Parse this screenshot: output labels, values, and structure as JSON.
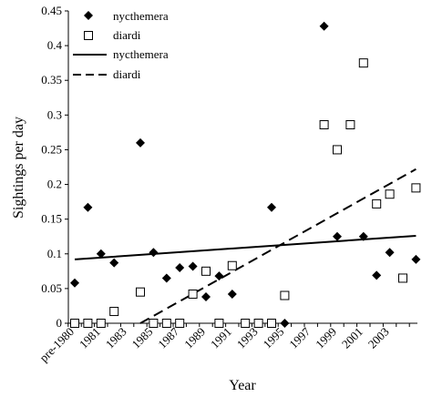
{
  "chart_data": {
    "type": "scatter",
    "xlabel": "Year",
    "ylabel": "Sightings per day",
    "ylim": [
      0,
      0.45
    ],
    "y_ticks": [
      "0",
      "0.05",
      "0.1",
      "0.15",
      "0.2",
      "0.25",
      "0.3",
      "0.35",
      "0.4",
      "0.45"
    ],
    "x_ticks": [
      "pre-1980",
      "1981",
      "1983",
      "1985",
      "1987",
      "1989",
      "1991",
      "1993",
      "1995",
      "1997",
      "1999",
      "2001",
      "2003"
    ],
    "x_categories": [
      "pre-1980",
      "1980",
      "1981",
      "1982",
      "1983",
      "1984",
      "1985",
      "1986",
      "1987",
      "1988",
      "1989",
      "1990",
      "1991",
      "1992",
      "1993",
      "1994",
      "1995",
      "1996",
      "1997",
      "1998",
      "1999",
      "2000",
      "2001",
      "2002",
      "2003",
      "2004"
    ],
    "grid": false,
    "legend_position": "top-left",
    "legend": [
      {
        "label": "nycthemera",
        "marker": "filled-diamond"
      },
      {
        "label": "diardi",
        "marker": "open-square"
      },
      {
        "label": "nycthemera",
        "marker": "solid-line"
      },
      {
        "label": "diardi",
        "marker": "dashed-line"
      }
    ],
    "series": [
      {
        "name": "nycthemera",
        "marker": "filled-diamond",
        "color": "#000000",
        "points": [
          {
            "x": "pre-1980",
            "y": 0.058
          },
          {
            "x": "1980",
            "y": 0.167
          },
          {
            "x": "1981",
            "y": 0.1
          },
          {
            "x": "1982",
            "y": 0.087
          },
          {
            "x": "1984",
            "y": 0.26
          },
          {
            "x": "1985",
            "y": 0.102
          },
          {
            "x": "1986",
            "y": 0.065
          },
          {
            "x": "1987",
            "y": 0.08
          },
          {
            "x": "1988",
            "y": 0.082
          },
          {
            "x": "1989",
            "y": 0.038
          },
          {
            "x": "1990",
            "y": 0.068
          },
          {
            "x": "1991",
            "y": 0.042
          },
          {
            "x": "1994",
            "y": 0.167
          },
          {
            "x": "1995",
            "y": 0.0
          },
          {
            "x": "1998",
            "y": 0.428
          },
          {
            "x": "1999",
            "y": 0.125
          },
          {
            "x": "2001",
            "y": 0.125
          },
          {
            "x": "2002",
            "y": 0.069
          },
          {
            "x": "2003",
            "y": 0.102
          },
          {
            "x": "2005",
            "y": 0.092
          }
        ]
      },
      {
        "name": "diardi",
        "marker": "open-square",
        "color": "#000000",
        "points": [
          {
            "x": "pre-1980",
            "y": 0.0
          },
          {
            "x": "1980",
            "y": 0.0
          },
          {
            "x": "1981",
            "y": 0.0
          },
          {
            "x": "1982",
            "y": 0.017
          },
          {
            "x": "1984",
            "y": 0.045
          },
          {
            "x": "1985",
            "y": 0.0
          },
          {
            "x": "1986",
            "y": 0.0
          },
          {
            "x": "1987",
            "y": 0.0
          },
          {
            "x": "1988",
            "y": 0.042
          },
          {
            "x": "1989",
            "y": 0.075
          },
          {
            "x": "1990",
            "y": 0.0
          },
          {
            "x": "1991",
            "y": 0.083
          },
          {
            "x": "1992",
            "y": 0.0
          },
          {
            "x": "1993",
            "y": 0.0
          },
          {
            "x": "1994",
            "y": 0.0
          },
          {
            "x": "1995",
            "y": 0.04
          },
          {
            "x": "1998",
            "y": 0.286
          },
          {
            "x": "1999",
            "y": 0.25
          },
          {
            "x": "2000",
            "y": 0.286
          },
          {
            "x": "2001",
            "y": 0.375
          },
          {
            "x": "2002",
            "y": 0.172
          },
          {
            "x": "2003",
            "y": 0.186
          },
          {
            "x": "2004",
            "y": 0.065
          },
          {
            "x": "2005",
            "y": 0.195
          }
        ]
      }
    ],
    "trendlines": [
      {
        "name": "nycthemera",
        "style": "solid",
        "start": {
          "x": "pre-1980",
          "y": 0.092
        },
        "end": {
          "x": "2005",
          "y": 0.126
        }
      },
      {
        "name": "diardi",
        "style": "dashed",
        "start": {
          "x": "1984",
          "y": 0.0
        },
        "end": {
          "x": "2005",
          "y": 0.222
        }
      }
    ]
  }
}
